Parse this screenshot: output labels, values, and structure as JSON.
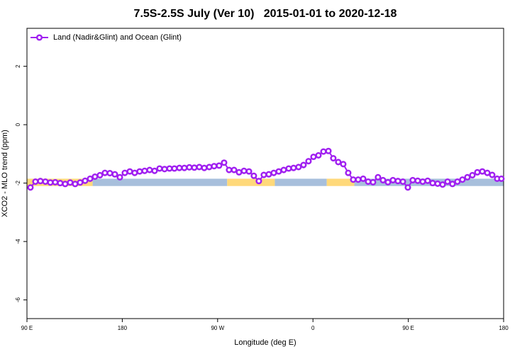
{
  "chart_data": {
    "type": "line",
    "title": "7.5S-2.5S July (Ver 10)   2015-01-01 to 2020-12-18",
    "xlabel": "Longitude (deg E)",
    "ylabel": "XCO2 - MLO trend (ppm)",
    "xlim": [
      90,
      540
    ],
    "xticks": [
      {
        "value": 90,
        "label": "90 E"
      },
      {
        "value": 180,
        "label": "180"
      },
      {
        "value": 270,
        "label": "90 W"
      },
      {
        "value": 360,
        "label": "0"
      },
      {
        "value": 450,
        "label": "90 E"
      },
      {
        "value": 540,
        "label": "180"
      }
    ],
    "ylim": [
      -6.64,
      3.3
    ],
    "yticks": [
      -6,
      -4,
      -2,
      0,
      2
    ],
    "legend": "top-left",
    "bands": [
      {
        "x": [
          90,
          152
        ],
        "y": [
          -2.1,
          -1.85
        ],
        "color": "#ffd97a"
      },
      {
        "x": [
          152,
          279
        ],
        "y": [
          -2.1,
          -1.85
        ],
        "color": "#a7bfdc"
      },
      {
        "x": [
          279,
          324
        ],
        "y": [
          -2.1,
          -1.85
        ],
        "color": "#ffd97a"
      },
      {
        "x": [
          324,
          373
        ],
        "y": [
          -2.1,
          -1.85
        ],
        "color": "#a7bfdc"
      },
      {
        "x": [
          373,
          399
        ],
        "y": [
          -2.1,
          -1.85
        ],
        "color": "#ffd97a"
      },
      {
        "x": [
          399,
          540
        ],
        "y": [
          -2.1,
          -1.85
        ],
        "color": "#a7bfdc"
      }
    ],
    "x": [
      93.3,
      98.0,
      102.7,
      107.4,
      112.1,
      116.7,
      121.4,
      126.1,
      130.8,
      135.5,
      140.2,
      144.9,
      149.6,
      154.2,
      158.9,
      163.6,
      168.3,
      173.0,
      177.7,
      182.4,
      187.1,
      191.7,
      196.4,
      201.1,
      205.8,
      210.5,
      215.2,
      219.9,
      224.6,
      229.2,
      233.9,
      238.6,
      243.3,
      248.0,
      252.7,
      257.4,
      262.1,
      266.7,
      271.4,
      276.1,
      280.8,
      285.5,
      290.2,
      294.9,
      299.6,
      304.2,
      308.9,
      313.6,
      318.3,
      323.0,
      327.7,
      332.4,
      337.1,
      341.7,
      346.4,
      351.1,
      355.8,
      360.5,
      365.2,
      369.9,
      374.6,
      379.2,
      383.9,
      388.6,
      393.3,
      398.0,
      402.7,
      407.4,
      412.1,
      416.7,
      421.4,
      426.1,
      430.8,
      435.5,
      440.2,
      444.9,
      449.6,
      454.2,
      458.9,
      463.6,
      468.3,
      473.0,
      477.7,
      482.4,
      487.1,
      491.7,
      496.4,
      501.1,
      505.8,
      510.5,
      515.2,
      519.9,
      524.6,
      529.2,
      533.9,
      537.9
    ],
    "series": [
      {
        "name": "Land (Nadir&Glint) and Ocean (Glint)",
        "color": "#a020f0",
        "values": [
          -2.15,
          -1.95,
          -1.93,
          -1.95,
          -1.98,
          -1.97,
          -2.0,
          -2.03,
          -1.98,
          -2.03,
          -1.98,
          -1.92,
          -1.85,
          -1.78,
          -1.73,
          -1.65,
          -1.66,
          -1.7,
          -1.8,
          -1.65,
          -1.6,
          -1.65,
          -1.6,
          -1.58,
          -1.55,
          -1.58,
          -1.5,
          -1.52,
          -1.5,
          -1.5,
          -1.48,
          -1.48,
          -1.46,
          -1.47,
          -1.45,
          -1.48,
          -1.45,
          -1.42,
          -1.4,
          -1.3,
          -1.55,
          -1.55,
          -1.63,
          -1.58,
          -1.6,
          -1.75,
          -1.93,
          -1.72,
          -1.7,
          -1.65,
          -1.6,
          -1.55,
          -1.5,
          -1.48,
          -1.45,
          -1.38,
          -1.25,
          -1.1,
          -1.05,
          -0.92,
          -0.9,
          -1.15,
          -1.28,
          -1.35,
          -1.65,
          -1.88,
          -1.88,
          -1.85,
          -1.95,
          -1.97,
          -1.8,
          -1.9,
          -1.97,
          -1.9,
          -1.93,
          -1.95,
          -2.15,
          -1.9,
          -1.92,
          -1.95,
          -1.92,
          -2.0,
          -2.02,
          -2.05,
          -1.95,
          -2.03,
          -1.95,
          -1.88,
          -1.8,
          -1.73,
          -1.63,
          -1.6,
          -1.65,
          -1.72,
          -1.85,
          -1.85
        ]
      }
    ]
  }
}
